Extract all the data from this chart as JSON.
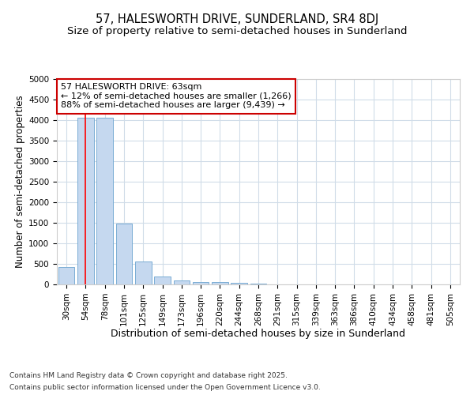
{
  "title": "57, HALESWORTH DRIVE, SUNDERLAND, SR4 8DJ",
  "subtitle": "Size of property relative to semi-detached houses in Sunderland",
  "xlabel": "Distribution of semi-detached houses by size in Sunderland",
  "ylabel": "Number of semi-detached properties",
  "categories": [
    "30sqm",
    "54sqm",
    "78sqm",
    "101sqm",
    "125sqm",
    "149sqm",
    "173sqm",
    "196sqm",
    "220sqm",
    "244sqm",
    "268sqm",
    "291sqm",
    "315sqm",
    "339sqm",
    "363sqm",
    "386sqm",
    "410sqm",
    "434sqm",
    "458sqm",
    "481sqm",
    "505sqm"
  ],
  "values": [
    420,
    4050,
    4050,
    1480,
    560,
    200,
    105,
    65,
    50,
    30,
    20,
    8,
    5,
    3,
    2,
    2,
    1,
    1,
    1,
    1,
    1
  ],
  "bar_color": "#c5d8ef",
  "bar_edgecolor": "#7aadd4",
  "red_line_x": 1,
  "annotation_line1": "57 HALESWORTH DRIVE: 63sqm",
  "annotation_line2": "← 12% of semi-detached houses are smaller (1,266)",
  "annotation_line3": "88% of semi-detached houses are larger (9,439) →",
  "annotation_box_color": "#ffffff",
  "annotation_box_edgecolor": "#cc0000",
  "ylim": [
    0,
    5000
  ],
  "yticks": [
    0,
    500,
    1000,
    1500,
    2000,
    2500,
    3000,
    3500,
    4000,
    4500,
    5000
  ],
  "footnote_line1": "Contains HM Land Registry data © Crown copyright and database right 2025.",
  "footnote_line2": "Contains public sector information licensed under the Open Government Licence v3.0.",
  "bg_color": "#ffffff",
  "plot_bg_color": "#ffffff",
  "grid_color": "#d0dce8",
  "title_fontsize": 10.5,
  "subtitle_fontsize": 9.5,
  "xlabel_fontsize": 9,
  "ylabel_fontsize": 8.5,
  "tick_fontsize": 7.5,
  "annotation_fontsize": 8,
  "footnote_fontsize": 6.5
}
